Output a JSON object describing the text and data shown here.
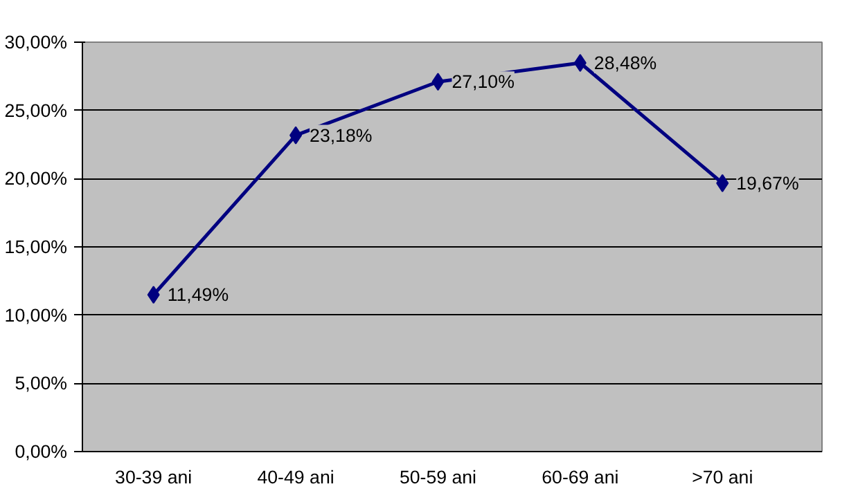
{
  "chart_data": {
    "type": "line",
    "categories": [
      "30-39 ani",
      "40-49 ani",
      "50-59 ani",
      "60-69 ani",
      ">70 ani"
    ],
    "series": [
      {
        "color": "#000080",
        "values": [
          11.49,
          23.18,
          27.1,
          28.48,
          19.67
        ],
        "value_labels": [
          "11,49%",
          "23,18%",
          "27,10%",
          "28,48%",
          "19,67%"
        ]
      }
    ],
    "ylim": [
      0,
      30
    ],
    "yticks": [
      {
        "value": 0,
        "label": "0,00%"
      },
      {
        "value": 5,
        "label": "5,00%"
      },
      {
        "value": 10,
        "label": "10,00%"
      },
      {
        "value": 15,
        "label": "15,00%"
      },
      {
        "value": 20,
        "label": "20,00%"
      },
      {
        "value": 25,
        "label": "25,00%"
      },
      {
        "value": 30,
        "label": "30,00%"
      }
    ],
    "grid": "y",
    "marker": "diamond",
    "line_style": "solid"
  }
}
